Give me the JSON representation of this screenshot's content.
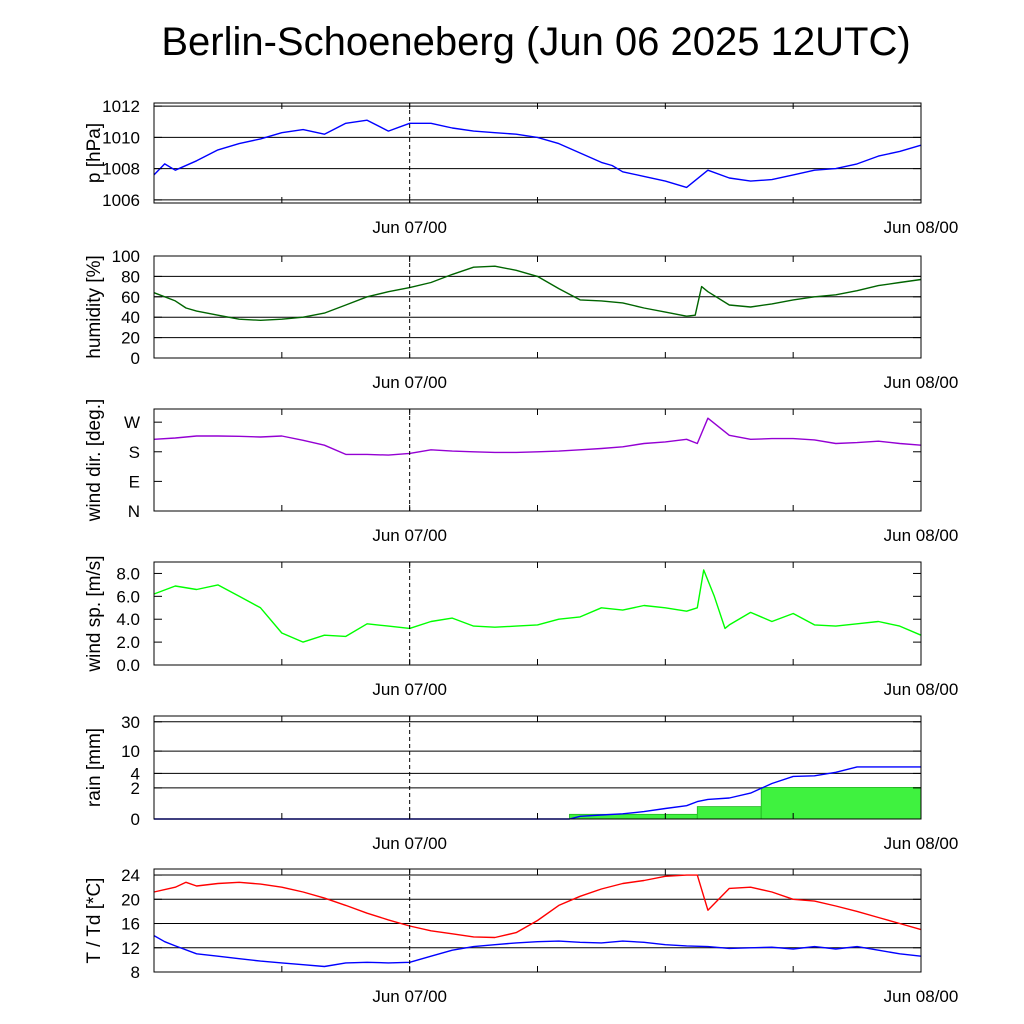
{
  "title": "Berlin-Schoeneberg (Jun 06 2025 12UTC)",
  "colors": {
    "pressure": "#0000ff",
    "humidity": "#006400",
    "wind_dir": "#9400d3",
    "wind_speed": "#00ff00",
    "rain_total": "#0000ff",
    "rain_bars": "#3ff23f",
    "temperature": "#ff0000",
    "dewpoint": "#0000ff"
  },
  "chart_data": [
    {
      "type": "line",
      "ylabel": "p [hPa]",
      "x_ticks": [
        "Jun 07/00",
        "Jun 08/00"
      ],
      "y_ticks": [
        "1006",
        "1008",
        "1010",
        "1012"
      ],
      "ylim": [
        1005.8,
        1012.2
      ],
      "grid": true,
      "series": [
        {
          "x": [
            0,
            0.5,
            1,
            2,
            3,
            4,
            5,
            6,
            7,
            8,
            9,
            10,
            11,
            12,
            13,
            14,
            15,
            16,
            17,
            18,
            19,
            20,
            21,
            21.5,
            22,
            23,
            24,
            25,
            26,
            27,
            28,
            29,
            30,
            31,
            32,
            33,
            34,
            35,
            36
          ],
          "y": [
            1007.6,
            1008.3,
            1007.9,
            1008.5,
            1009.2,
            1009.6,
            1009.9,
            1010.3,
            1010.5,
            1010.2,
            1010.9,
            1011.1,
            1010.4,
            1010.9,
            1010.9,
            1010.6,
            1010.4,
            1010.3,
            1010.2,
            1010.0,
            1009.6,
            1009.0,
            1008.4,
            1008.2,
            1007.8,
            1007.5,
            1007.2,
            1006.8,
            1007.9,
            1007.4,
            1007.2,
            1007.3,
            1007.6,
            1007.9,
            1008.0,
            1008.3,
            1008.8,
            1009.1,
            1009.5
          ]
        }
      ]
    },
    {
      "type": "line",
      "ylabel": "humidity [%]",
      "x_ticks": [
        "Jun 07/00",
        "Jun 08/00"
      ],
      "y_ticks": [
        "0",
        "20",
        "40",
        "60",
        "80",
        "100"
      ],
      "ylim": [
        0,
        100
      ],
      "grid": true,
      "series": [
        {
          "x": [
            0,
            1,
            1.5,
            2,
            3,
            4,
            5,
            6,
            7,
            8,
            9,
            10,
            11,
            12,
            13,
            14,
            15,
            16,
            17,
            18,
            19,
            20,
            21,
            22,
            23,
            24,
            25,
            25.4,
            25.7,
            26,
            27,
            28,
            29,
            30,
            31,
            32,
            33,
            34,
            35,
            36
          ],
          "y": [
            64,
            56,
            49,
            46,
            42,
            38,
            37,
            38,
            40,
            44,
            52,
            60,
            65,
            69,
            74,
            82,
            89,
            90,
            86,
            80,
            68,
            57,
            56,
            54,
            49,
            45,
            41,
            42,
            70,
            65,
            52,
            50,
            53,
            57,
            60,
            62,
            66,
            71,
            74,
            77
          ]
        }
      ]
    },
    {
      "type": "line",
      "ylabel": "wind dir. [deg.]",
      "x_ticks": [
        "Jun 07/00",
        "Jun 08/00"
      ],
      "y_ticks": [
        "N",
        "E",
        "S",
        "W"
      ],
      "ylim": [
        0,
        310
      ],
      "grid": false,
      "series": [
        {
          "x": [
            0,
            1,
            2,
            3,
            4,
            5,
            6,
            7,
            8,
            9,
            10,
            11,
            12,
            13,
            14,
            15,
            16,
            17,
            18,
            19,
            20,
            21,
            22,
            23,
            24,
            25,
            25.5,
            26,
            27,
            28,
            29,
            30,
            31,
            32,
            33,
            34,
            35,
            36
          ],
          "y": [
            218,
            222,
            228,
            228,
            227,
            225,
            228,
            215,
            200,
            172,
            172,
            170,
            175,
            186,
            182,
            180,
            178,
            178,
            180,
            182,
            186,
            190,
            195,
            205,
            210,
            218,
            205,
            282,
            230,
            218,
            220,
            220,
            216,
            205,
            208,
            212,
            205,
            200
          ]
        }
      ]
    },
    {
      "type": "line",
      "ylabel": "wind sp. [m/s]",
      "x_ticks": [
        "Jun 07/00",
        "Jun 08/00"
      ],
      "y_ticks": [
        "0.0",
        "2.0",
        "4.0",
        "6.0",
        "8.0"
      ],
      "ylim": [
        0,
        9.0
      ],
      "grid": false,
      "series": [
        {
          "x": [
            0,
            1,
            2,
            3,
            4,
            5,
            6,
            7,
            8,
            9,
            10,
            11,
            12,
            13,
            14,
            15,
            16,
            17,
            18,
            19,
            20,
            21,
            22,
            23,
            24,
            25,
            25.5,
            25.8,
            26.3,
            26.8,
            27,
            28,
            29,
            30,
            31,
            32,
            33,
            34,
            35,
            36
          ],
          "y": [
            6.2,
            6.9,
            6.6,
            7.0,
            6.0,
            5.0,
            2.8,
            2.0,
            2.6,
            2.5,
            3.6,
            3.4,
            3.2,
            3.8,
            4.1,
            3.4,
            3.3,
            3.4,
            3.5,
            4.0,
            4.2,
            5.0,
            4.8,
            5.2,
            5.0,
            4.7,
            5.0,
            8.3,
            6.0,
            3.2,
            3.5,
            4.6,
            3.8,
            4.5,
            3.5,
            3.4,
            3.6,
            3.8,
            3.4,
            2.6
          ]
        }
      ]
    },
    {
      "type": "bar",
      "ylabel": "rain [mm]",
      "x_ticks": [
        "Jun 07/00",
        "Jun 08/00"
      ],
      "y_ticks": [
        "0",
        "2",
        "4",
        "10",
        "30"
      ],
      "ylim": [
        0,
        37
      ],
      "y_scale": "log",
      "grid": true,
      "bars": [
        {
          "x_start": 19.5,
          "x_end": 25.5,
          "value": 0.18
        },
        {
          "x_start": 25.5,
          "x_end": 28.5,
          "value": 0.55
        },
        {
          "x_start": 28.5,
          "x_end": 36,
          "value": 2.05
        }
      ],
      "series": [
        {
          "x": [
            0,
            19.5,
            20,
            21,
            22,
            23,
            24,
            25,
            25.5,
            26,
            27,
            28,
            29,
            30,
            31,
            32,
            33,
            34,
            35,
            36
          ],
          "y": [
            0,
            0,
            0.1,
            0.15,
            0.2,
            0.3,
            0.45,
            0.6,
            0.85,
            1.0,
            1.1,
            1.5,
            2.5,
            3.5,
            3.6,
            4.2,
            5.3,
            5.3,
            5.3,
            5.3
          ]
        }
      ]
    },
    {
      "type": "line",
      "ylabel": "T / Td [*C]",
      "x_ticks": [
        "Jun 07/00",
        "Jun 08/00"
      ],
      "y_ticks": [
        "8",
        "12",
        "16",
        "20",
        "24"
      ],
      "ylim": [
        8,
        25
      ],
      "grid": true,
      "series": [
        {
          "x": [
            0,
            1,
            1.5,
            2,
            3,
            4,
            5,
            6,
            7,
            8,
            9,
            10,
            11,
            12,
            13,
            14,
            15,
            16,
            17,
            18,
            19,
            20,
            21,
            22,
            23,
            24,
            25,
            25.5,
            26,
            27,
            28,
            29,
            30,
            31,
            32,
            33,
            34,
            35,
            36
          ],
          "y": [
            21.2,
            22.0,
            22.8,
            22.2,
            22.6,
            22.8,
            22.5,
            22.0,
            21.2,
            20.2,
            19.0,
            17.7,
            16.6,
            15.6,
            14.8,
            14.3,
            13.8,
            13.7,
            14.5,
            16.5,
            19.0,
            20.5,
            21.7,
            22.6,
            23.1,
            23.8,
            24.0,
            24.0,
            18.2,
            21.8,
            22.0,
            21.2,
            20.0,
            19.7,
            18.9,
            18.0,
            17.0,
            16.0,
            15.0
          ]
        },
        {
          "x": [
            0,
            0.5,
            1,
            2,
            3,
            4,
            5,
            6,
            7,
            8,
            9,
            10,
            11,
            12,
            13,
            14,
            15,
            16,
            17,
            18,
            19,
            20,
            21,
            22,
            23,
            24,
            25,
            26,
            27,
            28,
            29,
            30,
            31,
            32,
            33,
            34,
            35,
            36
          ],
          "y": [
            14.0,
            13.0,
            12.3,
            11.0,
            10.6,
            10.2,
            9.8,
            9.5,
            9.2,
            8.9,
            9.5,
            9.6,
            9.5,
            9.6,
            10.6,
            11.6,
            12.2,
            12.5,
            12.8,
            13.0,
            13.1,
            12.9,
            12.8,
            13.1,
            12.9,
            12.5,
            12.3,
            12.2,
            11.9,
            12.0,
            12.1,
            11.8,
            12.2,
            11.8,
            12.2,
            11.6,
            11.0,
            10.6
          ]
        }
      ]
    }
  ]
}
